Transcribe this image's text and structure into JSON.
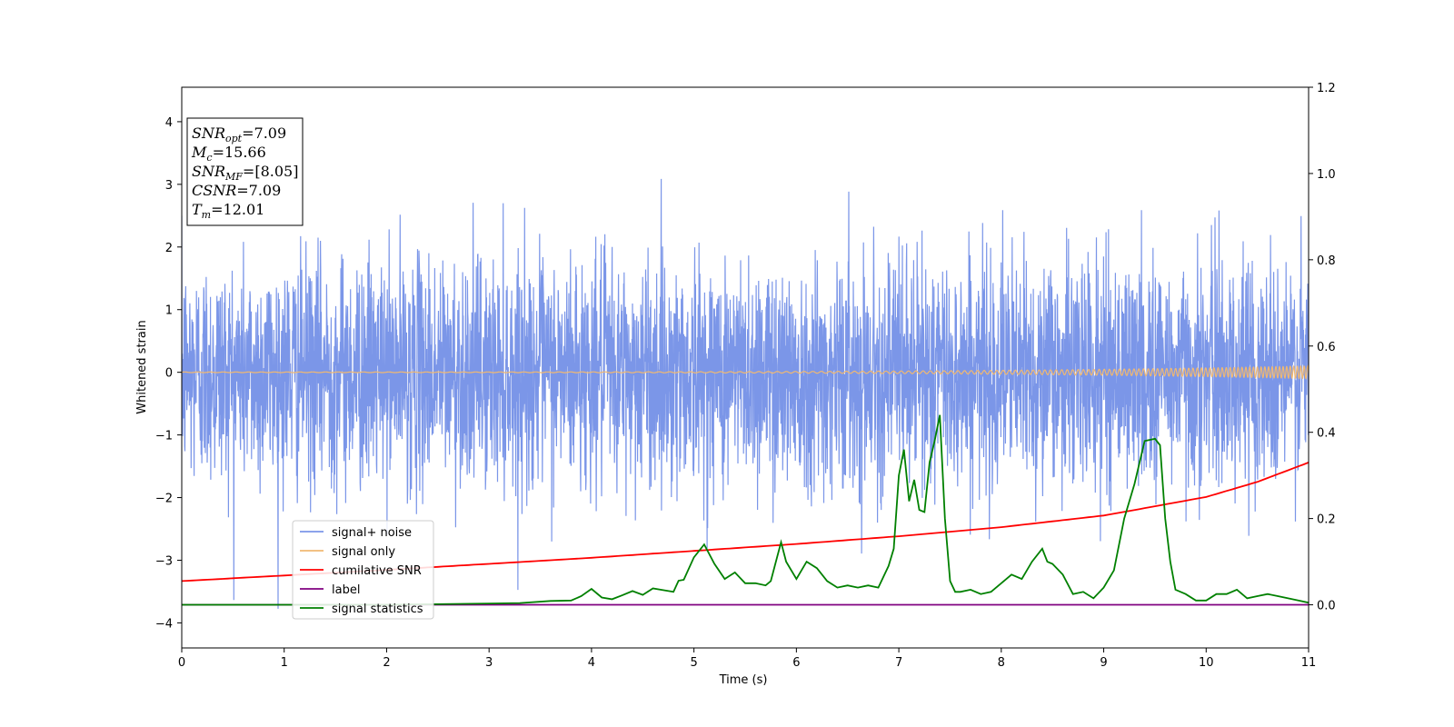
{
  "chart_data": {
    "type": "line",
    "xlabel": "Time (s)",
    "ylabel": "Whitened strain",
    "xlim": [
      0,
      11
    ],
    "ylim": [
      -4.4,
      4.55
    ],
    "y2lim": [
      -0.1,
      1.2
    ],
    "x_ticks": [
      "0",
      "1",
      "2",
      "3",
      "4",
      "5",
      "6",
      "7",
      "8",
      "9",
      "10",
      "11"
    ],
    "y_ticks": [
      "4",
      "3",
      "2",
      "1",
      "0",
      "−1",
      "−2",
      "−3",
      "−4"
    ],
    "y2_ticks": [
      "1.2",
      "1.0",
      "0.8",
      "0.6",
      "0.4",
      "0.2",
      "0.0"
    ],
    "grid": false,
    "legend_position": "lower-left",
    "annotation": {
      "lines": [
        {
          "main": "SNR",
          "sub": "opt",
          "value": "=7.09"
        },
        {
          "main": "M",
          "sub": "c",
          "value": "=15.66"
        },
        {
          "main": "SNR",
          "sub": "MF",
          "value": "=[8.05]"
        },
        {
          "main": "CSNR",
          "sub": "",
          "value": "=7.09"
        },
        {
          "main": "T",
          "sub": "m",
          "value": "=12.01"
        }
      ]
    },
    "series": [
      {
        "name": "signal+ noise",
        "color": "#7b96e8",
        "axis": "left",
        "noise_std": 0.9,
        "envelope": [
          -3.9,
          4.2
        ]
      },
      {
        "name": "signal only",
        "color": "#f0b872",
        "axis": "left",
        "chirp": {
          "start_amp": 0.005,
          "end_amp": 0.1,
          "start_freq_hz": 8,
          "end_freq_hz": 30
        }
      },
      {
        "name": "cumilative SNR",
        "color": "#ff0000",
        "axis": "right",
        "x": [
          0,
          1,
          2,
          3,
          4,
          5,
          6,
          7,
          8,
          9,
          10,
          10.5,
          11
        ],
        "values": [
          0.055,
          0.068,
          0.081,
          0.095,
          0.109,
          0.125,
          0.141,
          0.159,
          0.18,
          0.207,
          0.25,
          0.285,
          0.33
        ]
      },
      {
        "name": "label",
        "color": "#800080",
        "axis": "right",
        "x": [
          0,
          11
        ],
        "values": [
          0.0,
          0.0
        ]
      },
      {
        "name": "signal statistics",
        "color": "#008000",
        "axis": "right",
        "x": [
          0,
          1,
          2,
          3,
          3.3,
          3.6,
          3.8,
          3.9,
          4.0,
          4.1,
          4.2,
          4.3,
          4.4,
          4.5,
          4.6,
          4.7,
          4.8,
          4.85,
          4.9,
          5.0,
          5.1,
          5.2,
          5.3,
          5.4,
          5.5,
          5.6,
          5.7,
          5.75,
          5.8,
          5.85,
          5.9,
          6.0,
          6.1,
          6.2,
          6.3,
          6.4,
          6.5,
          6.6,
          6.7,
          6.8,
          6.9,
          6.95,
          7.0,
          7.05,
          7.1,
          7.15,
          7.2,
          7.25,
          7.3,
          7.35,
          7.4,
          7.45,
          7.5,
          7.55,
          7.6,
          7.7,
          7.8,
          7.9,
          8.0,
          8.1,
          8.2,
          8.3,
          8.4,
          8.45,
          8.5,
          8.6,
          8.7,
          8.8,
          8.9,
          9.0,
          9.1,
          9.2,
          9.3,
          9.4,
          9.5,
          9.55,
          9.6,
          9.65,
          9.7,
          9.8,
          9.9,
          10.0,
          10.1,
          10.2,
          10.3,
          10.4,
          10.5,
          10.6,
          10.7,
          10.8,
          10.9,
          11.0
        ],
        "values": [
          0,
          0,
          0,
          0.003,
          0.004,
          0.009,
          0.01,
          0.02,
          0.037,
          0.017,
          0.013,
          0.022,
          0.032,
          0.023,
          0.038,
          0.034,
          0.03,
          0.056,
          0.058,
          0.11,
          0.14,
          0.095,
          0.06,
          0.075,
          0.05,
          0.05,
          0.045,
          0.055,
          0.1,
          0.145,
          0.1,
          0.06,
          0.1,
          0.085,
          0.055,
          0.04,
          0.045,
          0.04,
          0.045,
          0.04,
          0.09,
          0.13,
          0.3,
          0.36,
          0.24,
          0.29,
          0.22,
          0.215,
          0.33,
          0.38,
          0.44,
          0.2,
          0.055,
          0.03,
          0.03,
          0.035,
          0.025,
          0.03,
          0.05,
          0.07,
          0.06,
          0.1,
          0.13,
          0.1,
          0.095,
          0.07,
          0.025,
          0.03,
          0.015,
          0.04,
          0.08,
          0.2,
          0.28,
          0.38,
          0.385,
          0.37,
          0.2,
          0.1,
          0.035,
          0.025,
          0.01,
          0.01,
          0.025,
          0.025,
          0.035,
          0.015,
          0.02,
          0.025,
          0.02,
          0.015,
          0.01,
          0.005
        ]
      }
    ]
  }
}
